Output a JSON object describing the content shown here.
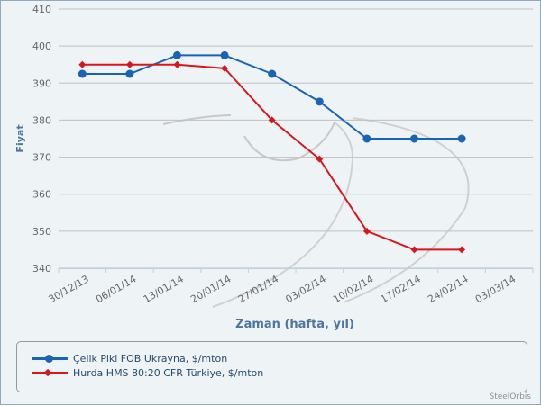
{
  "chart_data": {
    "type": "line",
    "title": "",
    "xlabel": "Zaman (hafta, yıl)",
    "ylabel": "Fiyat",
    "ylim": [
      340,
      410
    ],
    "yticks": [
      340,
      350,
      360,
      370,
      380,
      390,
      400,
      410
    ],
    "categories": [
      "30/12/13",
      "06/01/14",
      "13/01/14",
      "20/01/14",
      "27/01/14",
      "03/02/14",
      "10/02/14",
      "17/02/14",
      "24/02/14",
      "03/03/14"
    ],
    "grid": true,
    "legend_position": "bottom",
    "series": [
      {
        "name": "Çelik Piki FOB Ukrayna, $/mton",
        "color": "#1a64b8",
        "marker": "circle",
        "values": [
          392.5,
          392.5,
          397.5,
          397.5,
          392.5,
          385,
          375,
          375,
          375,
          null
        ]
      },
      {
        "name": "Hurda HMS 80:20 CFR Türkiye, $/mton",
        "color": "#d7171c",
        "marker": "diamond",
        "values": [
          395,
          395,
          395,
          394,
          380,
          369.5,
          350,
          345,
          345,
          null
        ]
      }
    ]
  },
  "credit": "SteelOrbis"
}
